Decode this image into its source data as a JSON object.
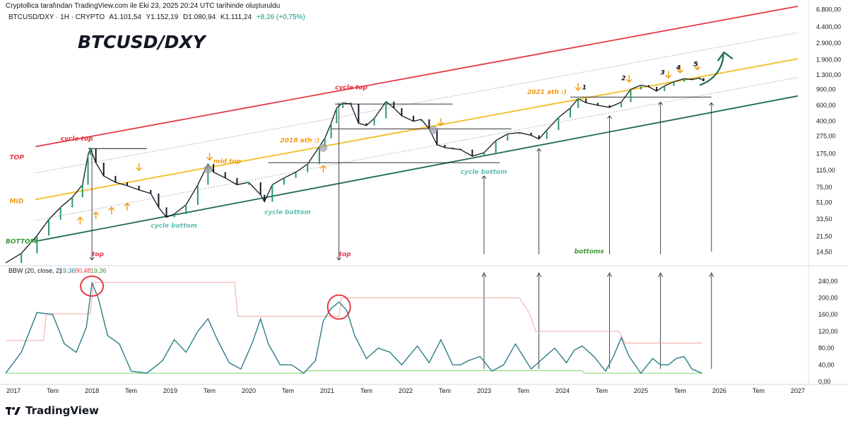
{
  "header": {
    "attribution": "Cryptollica tarafından TradingView.com ile Eki 23, 2025 20:24 UTC tarihinde oluşturuldu"
  },
  "symbol_info": {
    "symbol": "BTCUSD/DXY · 1H · CRYPTO",
    "open": "A1.101,54",
    "high": "Y1.152,19",
    "low": "D1.080,94",
    "close": "K1.111,24",
    "change": "+8,26 (+0,75%)"
  },
  "footer": {
    "brand": "TradingView"
  },
  "colors": {
    "top_channel": "#e53945",
    "mid_channel": "#f2c233",
    "bottom_channel": "#1e6b52",
    "price": "#131722",
    "bbw_line": "#2a7f86",
    "bbw_upper": "#f4a6a6",
    "bbw_lower": "#7ed36f",
    "arrow_orange": "#f39c12",
    "cycle_red": "#e53945",
    "cycle_teal": "#5fbfb4",
    "green_label": "#3a9a35"
  },
  "chart_data": [
    {
      "type": "line",
      "title": "BTCUSD/DXY",
      "scale": "log",
      "x_axis_ticks": [
        "2017",
        "Tem",
        "2018",
        "Tem",
        "2019",
        "Tem",
        "2020",
        "Tem",
        "2021",
        "Tem",
        "2022",
        "Tem",
        "2023",
        "Tem",
        "2024",
        "Tem",
        "2025",
        "Tem",
        "2026",
        "Tem",
        "2027"
      ],
      "y_axis_ticks": [
        "6.800,00",
        "4.400,00",
        "2.900,00",
        "1.900,00",
        "1.300,00",
        "900,00",
        "600,00",
        "400,00",
        "275,00",
        "175,00",
        "115,00",
        "75,00",
        "51,00",
        "33,50",
        "21,50",
        "14,50"
      ],
      "ylim": [
        11,
        7000
      ],
      "x_range_years": [
        2016.9,
        2027.1
      ],
      "series": [
        {
          "name": "BTCUSD/DXY",
          "points": [
            [
              2016.9,
              11
            ],
            [
              2017.1,
              14
            ],
            [
              2017.3,
              22
            ],
            [
              2017.45,
              33
            ],
            [
              2017.6,
              45
            ],
            [
              2017.75,
              58
            ],
            [
              2017.88,
              80
            ],
            [
              2017.95,
              170
            ],
            [
              2017.98,
              200
            ],
            [
              2018.05,
              140
            ],
            [
              2018.15,
              100
            ],
            [
              2018.3,
              85
            ],
            [
              2018.45,
              78
            ],
            [
              2018.6,
              70
            ],
            [
              2018.75,
              64
            ],
            [
              2018.85,
              45
            ],
            [
              2018.95,
              35
            ],
            [
              2019.05,
              38
            ],
            [
              2019.2,
              48
            ],
            [
              2019.35,
              80
            ],
            [
              2019.48,
              135
            ],
            [
              2019.55,
              110
            ],
            [
              2019.7,
              95
            ],
            [
              2019.85,
              80
            ],
            [
              2020.0,
              85
            ],
            [
              2020.15,
              62
            ],
            [
              2020.2,
              52
            ],
            [
              2020.3,
              80
            ],
            [
              2020.45,
              95
            ],
            [
              2020.6,
              110
            ],
            [
              2020.75,
              135
            ],
            [
              2020.9,
              210
            ],
            [
              2020.97,
              260
            ],
            [
              2021.05,
              380
            ],
            [
              2021.12,
              560
            ],
            [
              2021.2,
              640
            ],
            [
              2021.3,
              620
            ],
            [
              2021.4,
              380
            ],
            [
              2021.5,
              360
            ],
            [
              2021.6,
              430
            ],
            [
              2021.75,
              660
            ],
            [
              2021.85,
              560
            ],
            [
              2021.95,
              460
            ],
            [
              2022.1,
              400
            ],
            [
              2022.2,
              420
            ],
            [
              2022.3,
              330
            ],
            [
              2022.4,
              220
            ],
            [
              2022.5,
              205
            ],
            [
              2022.6,
              200
            ],
            [
              2022.7,
              195
            ],
            [
              2022.85,
              165
            ],
            [
              2023.0,
              180
            ],
            [
              2023.15,
              245
            ],
            [
              2023.3,
              290
            ],
            [
              2023.45,
              300
            ],
            [
              2023.6,
              280
            ],
            [
              2023.7,
              255
            ],
            [
              2023.8,
              320
            ],
            [
              2023.95,
              440
            ],
            [
              2024.1,
              560
            ],
            [
              2024.2,
              710
            ],
            [
              2024.3,
              640
            ],
            [
              2024.45,
              600
            ],
            [
              2024.6,
              570
            ],
            [
              2024.75,
              650
            ],
            [
              2024.87,
              900
            ],
            [
              2025.0,
              1000
            ],
            [
              2025.1,
              960
            ],
            [
              2025.2,
              860
            ],
            [
              2025.3,
              980
            ],
            [
              2025.42,
              1090
            ],
            [
              2025.55,
              1180
            ],
            [
              2025.65,
              1150
            ],
            [
              2025.75,
              1200
            ],
            [
              2025.8,
              1111
            ]
          ]
        }
      ],
      "channels": [
        {
          "name": "TOP",
          "from": [
            2017.28,
            210
          ],
          "to": [
            2027.0,
            7400
          ]
        },
        {
          "name": "MID",
          "from": [
            2017.28,
            55
          ],
          "to": [
            2027.0,
            1950
          ]
        },
        {
          "name": "BOTTOM",
          "from": [
            2017.28,
            19
          ],
          "to": [
            2027.0,
            760
          ]
        }
      ],
      "horizontal_levels": [
        {
          "y": 200,
          "x": [
            2017.95,
            2018.7
          ]
        },
        {
          "y": 620,
          "x": [
            2021.1,
            2022.6
          ]
        },
        {
          "y": 330,
          "x": [
            2021.05,
            2023.35
          ]
        },
        {
          "y": 140,
          "x": [
            2020.25,
            2023.2
          ]
        },
        {
          "y": 740,
          "x": [
            2024.1,
            2025.9
          ]
        }
      ],
      "annotations": [
        {
          "text": "cycle top",
          "x": 2017.6,
          "y": 245,
          "color": "cycle_red"
        },
        {
          "text": "TOP",
          "x": 2016.95,
          "y": 152,
          "color": "cycle_red"
        },
        {
          "text": "MID",
          "x": 2016.95,
          "y": 50,
          "color": "arrow_orange"
        },
        {
          "text": "BOTTOM",
          "x": 2016.9,
          "y": 18,
          "color": "green_label"
        },
        {
          "text": "cycle bottom",
          "x": 2018.75,
          "y": 27,
          "color": "cycle_teal"
        },
        {
          "text": "mid top",
          "x": 2019.55,
          "y": 138,
          "color": "arrow_orange"
        },
        {
          "text": "cycle bottom",
          "x": 2020.2,
          "y": 38,
          "color": "cycle_teal"
        },
        {
          "text": "2018 ath :)",
          "x": 2020.4,
          "y": 235,
          "color": "arrow_orange"
        },
        {
          "text": "cycle top",
          "x": 2021.1,
          "y": 900,
          "color": "cycle_red"
        },
        {
          "text": "cycle bottom",
          "x": 2022.7,
          "y": 105,
          "color": "cycle_teal"
        },
        {
          "text": "2021 ath :)",
          "x": 2023.55,
          "y": 800,
          "color": "arrow_orange"
        },
        {
          "text": "top",
          "x": 2018.0,
          "y": 13,
          "color": "cycle_red"
        },
        {
          "text": "top",
          "x": 2021.15,
          "y": 13,
          "color": "cycle_red"
        },
        {
          "text": "bottoms",
          "x": 2024.15,
          "y": 14,
          "color": "green_label"
        },
        {
          "text": "1",
          "x": 2024.25,
          "y": 900,
          "color": "price"
        },
        {
          "text": "2",
          "x": 2024.75,
          "y": 1130,
          "color": "price"
        },
        {
          "text": "3",
          "x": 2025.25,
          "y": 1310,
          "color": "price"
        },
        {
          "text": "4",
          "x": 2025.45,
          "y": 1480,
          "color": "price"
        },
        {
          "text": "5",
          "x": 2025.67,
          "y": 1620,
          "color": "price"
        }
      ]
    },
    {
      "type": "line",
      "title": "BBW (20, close, 2)",
      "legend_values": [
        "19,36",
        "90,48",
        "19,36"
      ],
      "y_axis_ticks": [
        "240,00",
        "200,00",
        "160,00",
        "120,00",
        "80,00",
        "40,00",
        "0,00"
      ],
      "ylim": [
        0,
        270
      ],
      "series": [
        {
          "name": "BBW",
          "points": [
            [
              2016.9,
              20
            ],
            [
              2017.1,
              70
            ],
            [
              2017.3,
              165
            ],
            [
              2017.5,
              160
            ],
            [
              2017.65,
              90
            ],
            [
              2017.8,
              70
            ],
            [
              2017.93,
              130
            ],
            [
              2018.0,
              235
            ],
            [
              2018.08,
              200
            ],
            [
              2018.2,
              110
            ],
            [
              2018.35,
              90
            ],
            [
              2018.5,
              25
            ],
            [
              2018.7,
              20
            ],
            [
              2018.9,
              50
            ],
            [
              2019.05,
              100
            ],
            [
              2019.2,
              70
            ],
            [
              2019.35,
              120
            ],
            [
              2019.48,
              150
            ],
            [
              2019.6,
              100
            ],
            [
              2019.75,
              45
            ],
            [
              2019.9,
              30
            ],
            [
              2020.05,
              95
            ],
            [
              2020.15,
              150
            ],
            [
              2020.25,
              90
            ],
            [
              2020.4,
              40
            ],
            [
              2020.55,
              40
            ],
            [
              2020.7,
              20
            ],
            [
              2020.85,
              50
            ],
            [
              2020.95,
              145
            ],
            [
              2021.05,
              175
            ],
            [
              2021.15,
              190
            ],
            [
              2021.25,
              170
            ],
            [
              2021.35,
              110
            ],
            [
              2021.5,
              55
            ],
            [
              2021.65,
              80
            ],
            [
              2021.8,
              70
            ],
            [
              2021.95,
              40
            ],
            [
              2022.15,
              85
            ],
            [
              2022.3,
              45
            ],
            [
              2022.45,
              100
            ],
            [
              2022.6,
              40
            ],
            [
              2022.7,
              40
            ],
            [
              2022.8,
              50
            ],
            [
              2022.95,
              60
            ],
            [
              2023.1,
              25
            ],
            [
              2023.25,
              40
            ],
            [
              2023.4,
              90
            ],
            [
              2023.5,
              60
            ],
            [
              2023.6,
              30
            ],
            [
              2023.75,
              55
            ],
            [
              2023.9,
              80
            ],
            [
              2024.05,
              45
            ],
            [
              2024.15,
              75
            ],
            [
              2024.25,
              85
            ],
            [
              2024.4,
              60
            ],
            [
              2024.55,
              25
            ],
            [
              2024.65,
              60
            ],
            [
              2024.75,
              105
            ],
            [
              2024.85,
              60
            ],
            [
              2025.0,
              20
            ],
            [
              2025.15,
              55
            ],
            [
              2025.25,
              40
            ],
            [
              2025.35,
              40
            ],
            [
              2025.45,
              55
            ],
            [
              2025.55,
              60
            ],
            [
              2025.65,
              30
            ],
            [
              2025.78,
              20
            ]
          ]
        },
        {
          "name": "upper",
          "points": [
            [
              2016.9,
              98
            ],
            [
              2017.38,
              98
            ],
            [
              2017.42,
              162
            ],
            [
              2017.98,
              162
            ],
            [
              2018.02,
              237
            ],
            [
              2019.82,
              237
            ],
            [
              2019.86,
              156
            ],
            [
              2021.15,
              156
            ],
            [
              2021.18,
              200
            ],
            [
              2023.45,
              200
            ],
            [
              2023.58,
              163
            ],
            [
              2023.66,
              120
            ],
            [
              2024.72,
              120
            ],
            [
              2024.8,
              92
            ],
            [
              2025.78,
              92
            ]
          ]
        },
        {
          "name": "lower",
          "points": [
            [
              2016.9,
              20
            ],
            [
              2020.7,
              20
            ],
            [
              2020.74,
              26
            ],
            [
              2024.25,
              26
            ],
            [
              2024.28,
              20
            ],
            [
              2025.78,
              20
            ]
          ]
        }
      ]
    }
  ]
}
